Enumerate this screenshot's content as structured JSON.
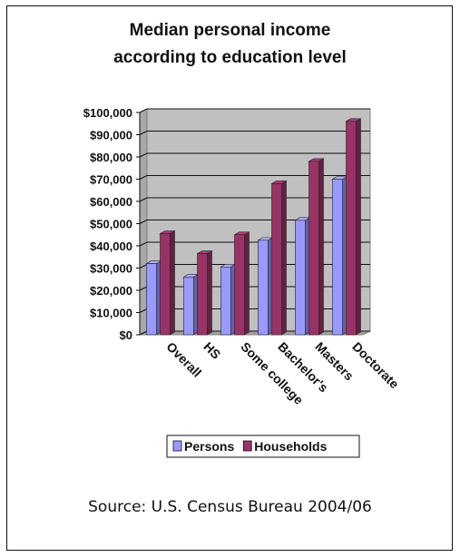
{
  "chart_data": {
    "type": "bar",
    "title_line1": "Median personal income",
    "title_line2": "according to education level",
    "categories": [
      "Overall",
      "HS",
      "Some college",
      "Bachelor's",
      "Masters",
      "Doctorate"
    ],
    "series": [
      {
        "name": "Persons",
        "values": [
          32000,
          26000,
          30500,
          42500,
          51500,
          70000
        ],
        "color": "#9999ff"
      },
      {
        "name": "Households",
        "values": [
          45500,
          36500,
          45000,
          68000,
          78000,
          96000
        ],
        "color": "#993366"
      }
    ],
    "y_tick_labels": [
      "$0",
      "$10,000",
      "$20,000",
      "$30,000",
      "$40,000",
      "$50,000",
      "$60,000",
      "$70,000",
      "$80,000",
      "$90,000",
      "$100,000"
    ],
    "y_ticks": [
      0,
      10000,
      20000,
      30000,
      40000,
      50000,
      60000,
      70000,
      80000,
      90000,
      100000
    ],
    "ylim": [
      0,
      100000
    ],
    "grid": true,
    "legend_position": "bottom",
    "plot_background": "#c0c0c0"
  },
  "source_text": "Source: U.S. Census Bureau 2004/06"
}
